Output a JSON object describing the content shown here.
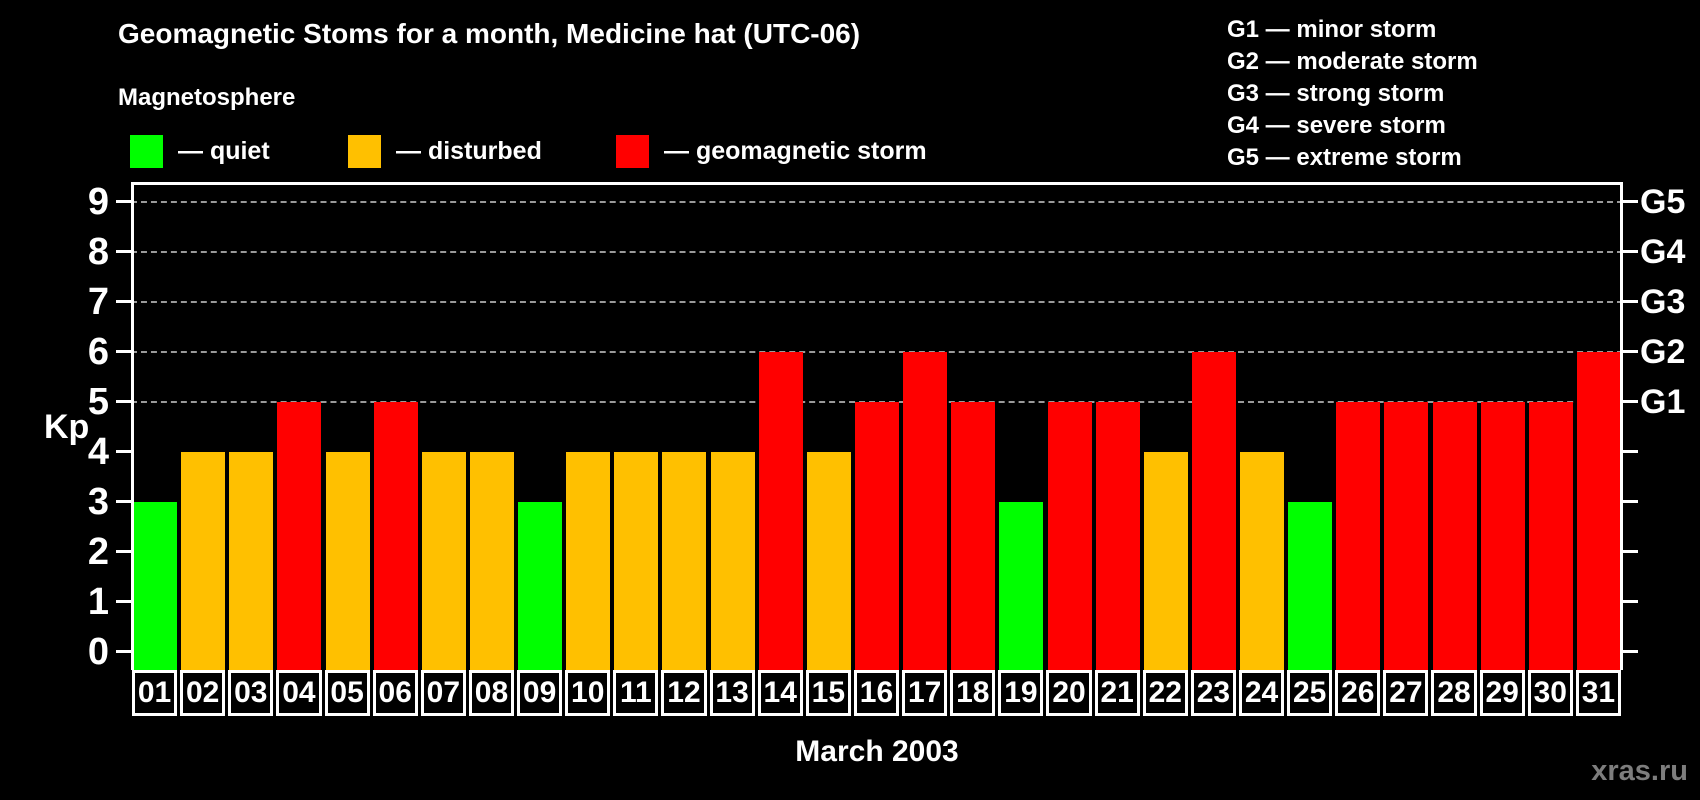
{
  "page": {
    "title": "Geomagnetic Stoms for a month, Medicine hat (UTC-06)",
    "watermark": "xras.ru"
  },
  "magnetosphere_legend": {
    "heading": "Magnetosphere",
    "items": [
      {
        "condition": "quiet",
        "label": "— quiet",
        "color": "#00ff00"
      },
      {
        "condition": "disturbed",
        "label": "— disturbed",
        "color": "#ffc000"
      },
      {
        "condition": "storm",
        "label": "— geomagnetic storm",
        "color": "#ff0000"
      }
    ]
  },
  "storm_scale_legend": [
    "G1 — minor storm",
    "G2 — moderate storm",
    "G3 — strong storm",
    "G4 — severe storm",
    "G5 — extreme storm"
  ],
  "chart_data": {
    "type": "bar",
    "title": "Geomagnetic Stoms for a month, Medicine hat (UTC-06)",
    "xlabel": "March 2003",
    "ylabel": "Kp",
    "ylim": [
      0,
      9
    ],
    "y_ticks": [
      0,
      1,
      2,
      3,
      4,
      5,
      6,
      7,
      8,
      9
    ],
    "gridlines_at": [
      5,
      6,
      7,
      8,
      9
    ],
    "grid_style": "dashed",
    "legend_position": "top",
    "right_axis_labels": [
      {
        "level": 5,
        "label": "G1"
      },
      {
        "level": 6,
        "label": "G2"
      },
      {
        "level": 7,
        "label": "G3"
      },
      {
        "level": 8,
        "label": "G4"
      },
      {
        "level": 9,
        "label": "G5"
      }
    ],
    "categories": [
      "01",
      "02",
      "03",
      "04",
      "05",
      "06",
      "07",
      "08",
      "09",
      "10",
      "11",
      "12",
      "13",
      "14",
      "15",
      "16",
      "17",
      "18",
      "19",
      "20",
      "21",
      "22",
      "23",
      "24",
      "25",
      "26",
      "27",
      "28",
      "29",
      "30",
      "31"
    ],
    "values": [
      3,
      4,
      4,
      5,
      4,
      5,
      4,
      4,
      3,
      4,
      4,
      4,
      4,
      6,
      4,
      5,
      6,
      5,
      3,
      5,
      5,
      4,
      6,
      4,
      3,
      5,
      5,
      5,
      5,
      5,
      6
    ],
    "conditions": [
      "quiet",
      "disturbed",
      "disturbed",
      "storm",
      "disturbed",
      "storm",
      "disturbed",
      "disturbed",
      "quiet",
      "disturbed",
      "disturbed",
      "disturbed",
      "disturbed",
      "storm",
      "disturbed",
      "storm",
      "storm",
      "storm",
      "quiet",
      "storm",
      "storm",
      "disturbed",
      "storm",
      "disturbed",
      "quiet",
      "storm",
      "storm",
      "storm",
      "storm",
      "storm",
      "storm"
    ],
    "colors": {
      "quiet": "#00ff00",
      "disturbed": "#ffc000",
      "storm": "#ff0000"
    }
  }
}
